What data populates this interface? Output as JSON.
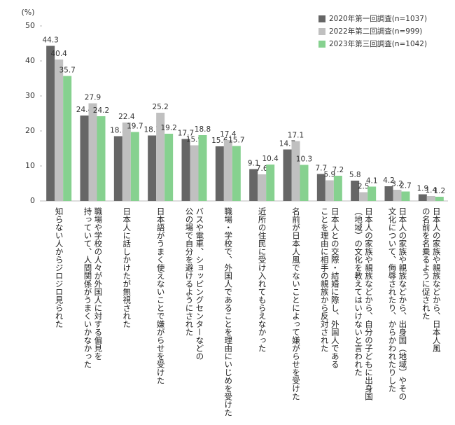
{
  "chart_data": {
    "type": "bar",
    "unit_label": "(%)",
    "categories": [
      "知らない人からジロジロ見られた",
      "職場や学校の人々が外国人に対する偏見を\n持っていて、人間関係がうまくいかなかった",
      "日本人に話しかけたが無視された",
      "日本語がうまく使えないことで嫌がらせを受けた",
      "バスや電車、ショッピングセンターなどの\n公の場で自分を避けるようにされた",
      "職場・学校で、外国人であることを理由にいじめを受けた",
      "近所の住民に受け入れてもらえなかった",
      "名前が日本人風でないことによって嫌がらせを受けた",
      "日本人との交際・結婚に際し、外国人である\nことを理由に相手の親族から反対された",
      "日本人の家族や親族などから、自分の子どもに出身国\n（地域）の文化を教えてはいけないと言われた",
      "日本人の家族や親族などから、出身国（地域）やその\n文化について、侮辱されたり、からかわれたりした",
      "日本人の家族や親族などから、日本人風\nの名前を名乗るように促された"
    ],
    "series": [
      {
        "name": "2020年第一回調査(n=1037)",
        "color": "#666666",
        "values": [
          44.3,
          24.4,
          18.5,
          18.7,
          17.7,
          15.6,
          9.1,
          14.7,
          7.7,
          5.8,
          4.2,
          1.9
        ]
      },
      {
        "name": "2022年第二回調査(n=999)",
        "color": "#c0c0c0",
        "values": [
          40.4,
          27.9,
          22.4,
          25.2,
          15.9,
          17.4,
          7.6,
          17.1,
          5.9,
          2.5,
          3.2,
          1.4
        ]
      },
      {
        "name": "2023年第三回調査(n=1042)",
        "color": "#86d18f",
        "values": [
          35.7,
          24.2,
          19.7,
          19.2,
          18.8,
          15.7,
          10.4,
          10.3,
          7.2,
          4.1,
          2.7,
          1.2
        ]
      }
    ],
    "ylim": [
      0,
      50
    ],
    "yticks": [
      0,
      10,
      20,
      30,
      40,
      50
    ],
    "legend": "upper right"
  }
}
